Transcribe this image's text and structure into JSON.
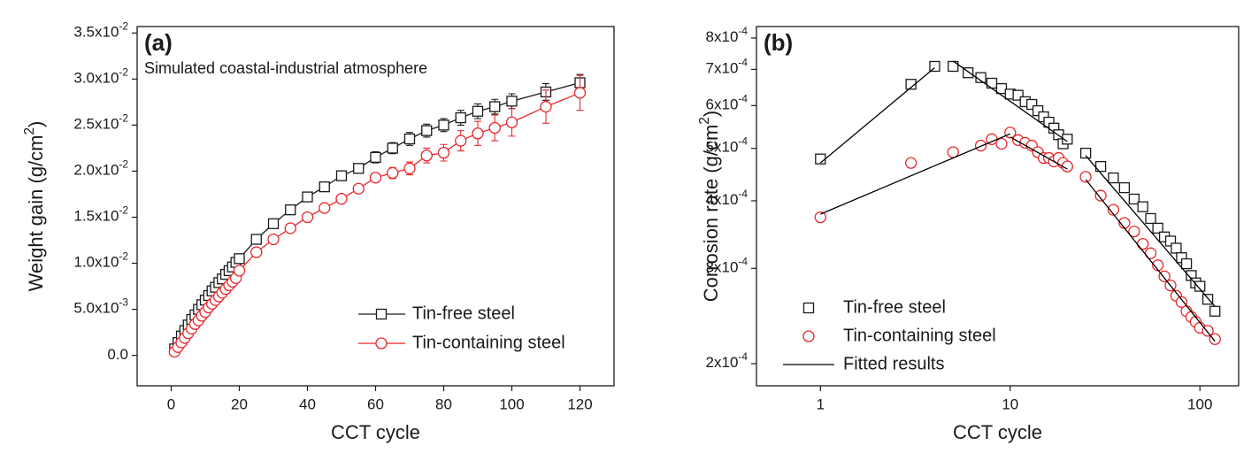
{
  "chart_data": [
    {
      "type": "line",
      "title": "(a)",
      "annotation": "Simulated coastal-industrial atmosphere",
      "x_label": "CCT cycle",
      "y_label": "Weight gain (g/cm2)",
      "x": [
        1,
        2,
        3,
        4,
        5,
        6,
        7,
        8,
        9,
        10,
        11,
        12,
        13,
        14,
        15,
        16,
        17,
        18,
        19,
        20,
        25,
        30,
        35,
        40,
        45,
        50,
        55,
        60,
        65,
        70,
        75,
        80,
        85,
        90,
        95,
        100,
        110,
        120
      ],
      "xlim": [
        -10,
        130
      ],
      "xticks": [
        0,
        20,
        40,
        60,
        80,
        100,
        120
      ],
      "ylim": [
        -0.0033,
        0.0357
      ],
      "yticks": [
        {
          "value": 0,
          "label": "0.0"
        },
        {
          "value": 0.005,
          "label": "5.0x10-3"
        },
        {
          "value": 0.01,
          "label": "1.0x10-2"
        },
        {
          "value": 0.015,
          "label": "1.5x10-2"
        },
        {
          "value": 0.02,
          "label": "2.0x10-2"
        },
        {
          "value": 0.025,
          "label": "2.5x10-2"
        },
        {
          "value": 0.03,
          "label": "3.0x10-2"
        },
        {
          "value": 0.035,
          "label": "3.5x10-2"
        }
      ],
      "legend": "lower right",
      "series": [
        {
          "name": "Tin-free steel",
          "color": "#1a1a1a",
          "marker": "square",
          "values": [
            0.0007,
            0.0014,
            0.0021,
            0.0027,
            0.0033,
            0.0039,
            0.0044,
            0.005,
            0.0055,
            0.006,
            0.0065,
            0.007,
            0.0074,
            0.0079,
            0.0083,
            0.0088,
            0.0092,
            0.0096,
            0.0101,
            0.0105,
            0.0126,
            0.0143,
            0.0158,
            0.0172,
            0.0183,
            0.0195,
            0.0203,
            0.0215,
            0.0225,
            0.0235,
            0.0244,
            0.025,
            0.0258,
            0.0265,
            0.027,
            0.0276,
            0.0286,
            0.0296
          ],
          "errors": [
            0.0002,
            0.0002,
            0.0002,
            0.0002,
            0.0002,
            0.0002,
            0.0002,
            0.0002,
            0.0002,
            0.0002,
            0.0002,
            0.0002,
            0.0002,
            0.0002,
            0.0002,
            0.0002,
            0.0002,
            0.0002,
            0.0002,
            0.0002,
            0.0003,
            0.0003,
            0.0003,
            0.0003,
            0.0004,
            0.0004,
            0.0005,
            0.0006,
            0.0006,
            0.0007,
            0.0007,
            0.0007,
            0.0008,
            0.0008,
            0.0008,
            0.0008,
            0.0009,
            0.0009
          ]
        },
        {
          "name": "Tin-containing steel",
          "color": "#e8262b",
          "marker": "circle",
          "values": [
            0.0004,
            0.0009,
            0.0014,
            0.0019,
            0.0024,
            0.0029,
            0.0034,
            0.0038,
            0.0043,
            0.0047,
            0.0052,
            0.0056,
            0.006,
            0.0064,
            0.0068,
            0.0072,
            0.0076,
            0.008,
            0.0084,
            0.0092,
            0.0112,
            0.0126,
            0.0138,
            0.015,
            0.016,
            0.017,
            0.0181,
            0.0193,
            0.0198,
            0.0203,
            0.0217,
            0.022,
            0.0233,
            0.0241,
            0.0247,
            0.0253,
            0.027,
            0.0285
          ],
          "errors": [
            0.0002,
            0.0002,
            0.0002,
            0.0002,
            0.0002,
            0.0002,
            0.0002,
            0.0002,
            0.0002,
            0.0002,
            0.0002,
            0.0002,
            0.0002,
            0.0002,
            0.0002,
            0.0002,
            0.0002,
            0.0002,
            0.0002,
            0.0002,
            0.0002,
            0.0002,
            0.0003,
            0.0003,
            0.0003,
            0.0004,
            0.0004,
            0.0005,
            0.0006,
            0.0007,
            0.0008,
            0.0009,
            0.0011,
            0.0013,
            0.0014,
            0.0015,
            0.0018,
            0.0019
          ]
        }
      ]
    },
    {
      "type": "scatter",
      "title": "(b)",
      "x_label": "CCT cycle",
      "y_label": "Corrosion rate (g/cm2)",
      "xlog": true,
      "ylog": true,
      "xlim": [
        0.46,
        160
      ],
      "xticks": [
        1,
        10,
        100
      ],
      "ylim": [
        0.000182,
        0.00084
      ],
      "yticks": [
        {
          "value": 0.0002,
          "label": "2x10-4"
        },
        {
          "value": 0.0003,
          "label": "3x10-4"
        },
        {
          "value": 0.0004,
          "label": "4x10-4"
        },
        {
          "value": 0.0005,
          "label": "5x10-4"
        },
        {
          "value": 0.0006,
          "label": "6x10-4"
        },
        {
          "value": 0.0007,
          "label": "7x10-4"
        },
        {
          "value": 0.0008,
          "label": "8x10-4"
        }
      ],
      "legend": "lower left",
      "series": [
        {
          "name": "Tin-free steel",
          "color": "#1a1a1a",
          "marker": "square",
          "x": [
            1,
            3,
            4,
            5,
            6,
            7,
            8,
            9,
            10,
            11,
            12,
            13,
            14,
            15,
            16,
            17,
            18,
            19,
            20,
            25,
            30,
            35,
            40,
            45,
            50,
            55,
            60,
            65,
            70,
            75,
            80,
            85,
            90,
            95,
            100,
            110,
            120
          ],
          "values": [
            0.000478,
            0.000657,
            0.000709,
            0.000709,
            0.00069,
            0.000676,
            0.00066,
            0.000645,
            0.00063,
            0.000627,
            0.00061,
            0.000603,
            0.000587,
            0.000572,
            0.000559,
            0.000545,
            0.00053,
            0.00051,
            0.00052,
            0.00049,
            0.000463,
            0.000441,
            0.000423,
            0.000403,
            0.00039,
            0.000371,
            0.000356,
            0.000343,
            0.000337,
            0.000327,
            0.000314,
            0.000306,
            0.000291,
            0.000282,
            0.000278,
            0.000263,
            0.00025
          ]
        },
        {
          "name": "Tin-containing steel",
          "color": "#e8262b",
          "marker": "circle",
          "x": [
            1,
            3,
            5,
            7,
            8,
            9,
            10,
            11,
            12,
            13,
            14,
            15,
            16,
            17,
            18,
            19,
            20,
            25,
            30,
            35,
            40,
            45,
            50,
            55,
            60,
            65,
            70,
            75,
            80,
            85,
            90,
            95,
            100,
            110,
            120
          ],
          "values": [
            0.000373,
            0.00047,
            0.000492,
            0.000506,
            0.00052,
            0.00051,
            0.000535,
            0.000518,
            0.000512,
            0.000506,
            0.000492,
            0.00048,
            0.00048,
            0.000473,
            0.00048,
            0.00047,
            0.000463,
            0.000443,
            0.000409,
            0.000385,
            0.000364,
            0.000351,
            0.000333,
            0.00032,
            0.000304,
            0.00029,
            0.000279,
            0.000267,
            0.00026,
            0.00025,
            0.000244,
            0.000239,
            0.000233,
            0.00023,
            0.000222
          ]
        },
        {
          "name": "Fitted results",
          "color": "#000000",
          "marker": "line",
          "x": [
            1,
            4,
            null,
            5,
            20,
            null,
            25,
            120,
            null,
            1,
            10,
            null,
            10,
            20,
            null,
            25,
            120
          ],
          "values": [
            0.00047,
            0.000705,
            null,
            0.000725,
            0.000515,
            null,
            0.000485,
            0.000255,
            null,
            0.000378,
            0.000532,
            null,
            0.000525,
            0.000458,
            null,
            0.000438,
            0.00022
          ]
        }
      ]
    }
  ]
}
